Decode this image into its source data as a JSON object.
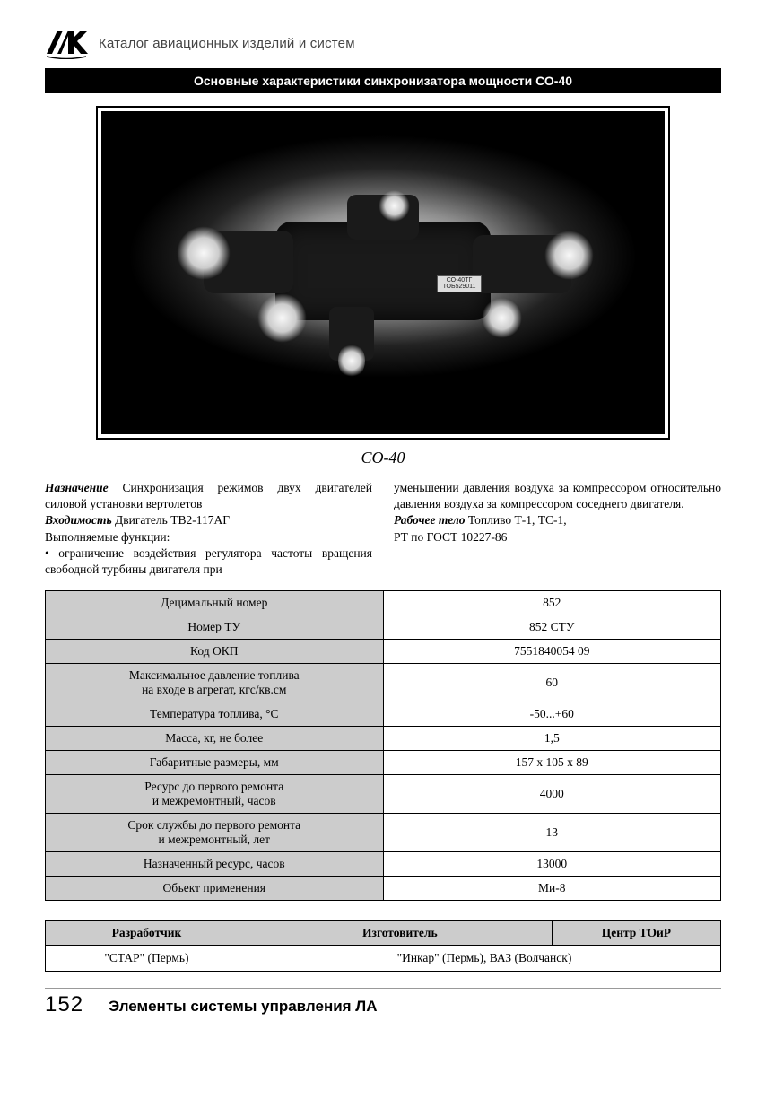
{
  "header": {
    "logo_text": "КАТ",
    "catalog_title": "Каталог авиационных изделий и систем"
  },
  "banner": "Основные характеристики синхронизатора мощности СО-40",
  "device_caption": "СО-40",
  "nameplate": {
    "line1": "СО-40ТГ",
    "line2": "ТОБ529011"
  },
  "description": {
    "left": {
      "naznachenie_label": "Назначение",
      "naznachenie_text": " Синхронизация режимов двух двигателей силовой установки вертолетов",
      "vhodimost_label": "Входимость",
      "vhodimost_text": " Двигатель ТВ2-117АГ",
      "functions_heading": "Выполняемые функции:",
      "bullet": "• ограничение воздействия регулятора частоты вращения свободной турбины двигателя при"
    },
    "right": {
      "cont": "уменьшении давления воздуха за компрессором относительно давления воздуха за компрес­сором соседнего двигателя.",
      "rabochee_label": "Рабочее тело",
      "rabochee_text": " Топливо Т-1, ТС-1,",
      "rabochee_line2": "РТ по ГОСТ 10227-86"
    }
  },
  "specs": {
    "rows": [
      {
        "label": "Децимальный номер",
        "value": "852"
      },
      {
        "label": "Номер ТУ",
        "value": "852 СТУ"
      },
      {
        "label": "Код ОКП",
        "value": "7551840054 09"
      },
      {
        "label": "Максимальное давление топлива\nна входе в агрегат, кгс/кв.см",
        "value": "60"
      },
      {
        "label": "Температура топлива, °C",
        "value": "-50...+60"
      },
      {
        "label": "Масса, кг, не более",
        "value": "1,5"
      },
      {
        "label": "Габаритные размеры, мм",
        "value": "157 x 105 x 89"
      },
      {
        "label": "Ресурс до первого ремонта\nи межремонтный, часов",
        "value": "4000"
      },
      {
        "label": "Срок службы до первого ремонта\nи межремонтный, лет",
        "value": "13"
      },
      {
        "label": "Назначенный ресурс, часов",
        "value": "13000"
      },
      {
        "label": "Объект применения",
        "value": "Ми-8"
      }
    ],
    "label_bg": "#cccccc",
    "border_color": "#000000"
  },
  "orgs": {
    "columns": [
      "Разработчик",
      "Изготовитель",
      "Центр ТОиР"
    ],
    "rows": [
      [
        "\"СТАР\" (Пермь)",
        "\"Инкар\" (Пермь), ВАЗ (Волчанск)",
        ""
      ]
    ],
    "col_widths": [
      "30%",
      "45%",
      "25%"
    ]
  },
  "footer": {
    "page_number": "152",
    "section_label": "Элементы системы управления ЛА"
  }
}
